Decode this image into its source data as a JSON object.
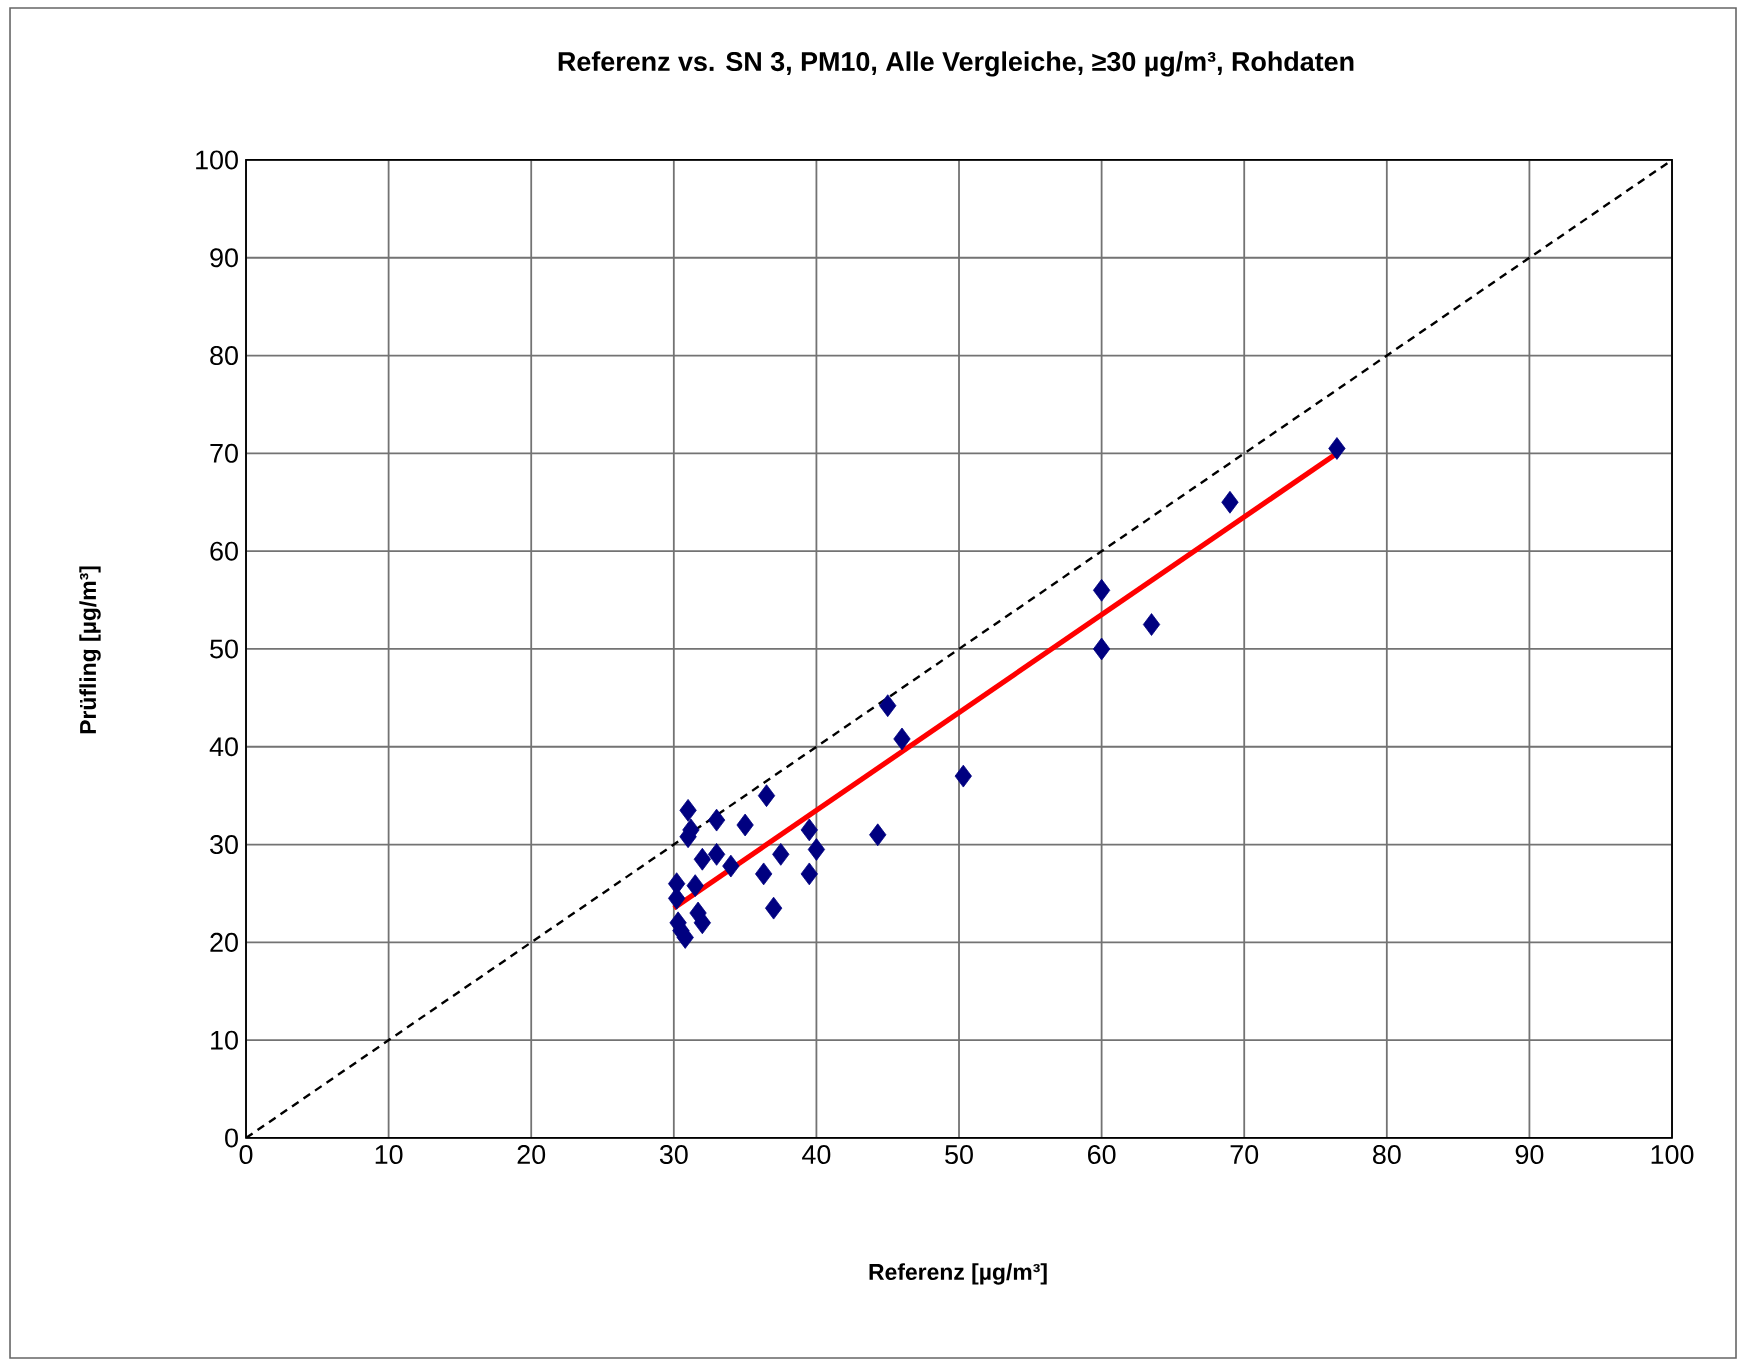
{
  "chart_data": {
    "type": "scatter",
    "title": "Referenz vs. SN 3, PM10, Alle Vergleiche, ≥30 µg/m³, Rohdaten",
    "xlabel": "Referenz [µg/m³]",
    "ylabel": "Prüfling [µg/m³]",
    "xlim": [
      0,
      100
    ],
    "ylim": [
      0,
      100
    ],
    "xticks": [
      0,
      10,
      20,
      30,
      40,
      50,
      60,
      70,
      80,
      90,
      100
    ],
    "yticks": [
      0,
      10,
      20,
      30,
      40,
      50,
      60,
      70,
      80,
      90,
      100
    ],
    "grid": true,
    "marker": "diamond",
    "series": [
      {
        "color": "#000080",
        "x": [
          76.5,
          69,
          60,
          60,
          63.5,
          50.3,
          46,
          45,
          44.3,
          40,
          39.5,
          39.5,
          37.5,
          37,
          36.5,
          36.3,
          35,
          34,
          33,
          33,
          32,
          31,
          31.2,
          31,
          31.5,
          30.2,
          30.2,
          30.3,
          30.5,
          30.8,
          32,
          31.7
        ],
        "values": [
          70.5,
          65,
          56,
          50,
          52.5,
          37,
          40.8,
          44.2,
          31,
          29.5,
          27,
          31.5,
          29,
          23.5,
          35,
          27,
          32,
          27.8,
          32.5,
          29,
          28.5,
          33.5,
          31.5,
          30.8,
          25.8,
          26,
          24.5,
          22,
          21.2,
          20.5,
          22,
          23
        ]
      },
      {
        "type": "line",
        "marker": "none",
        "color": "#ff0000",
        "line_style": "solid",
        "x": [
          30,
          76.5
        ],
        "values": [
          23.5,
          70
        ]
      },
      {
        "type": "line",
        "marker": "none",
        "color": "#000000",
        "line_style": "dashed",
        "x": [
          0,
          100
        ],
        "values": [
          0,
          100
        ]
      }
    ]
  }
}
